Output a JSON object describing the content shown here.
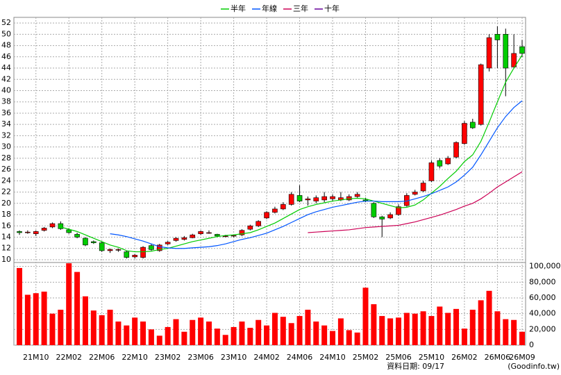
{
  "chart_data": {
    "type": "candlestick",
    "legend": [
      {
        "name": "半年",
        "color": "#00cc00"
      },
      {
        "name": "年線",
        "color": "#0055ff"
      },
      {
        "name": "三年",
        "color": "#cc0055"
      },
      {
        "name": "十年",
        "color": "#660099"
      }
    ],
    "categories": [
      null,
      null,
      "21M10",
      null,
      null,
      null,
      "22M02",
      null,
      null,
      null,
      "22M06",
      null,
      null,
      null,
      "22M10",
      null,
      null,
      null,
      "23M02",
      null,
      null,
      null,
      "23M06",
      null,
      null,
      null,
      "23M10",
      null,
      null,
      null,
      "24M02",
      null,
      null,
      null,
      "24M06",
      null,
      null,
      null,
      "24M10",
      null,
      null,
      null,
      "25M02",
      null,
      null,
      null,
      "25M06",
      null,
      null,
      null,
      "25M10",
      null,
      null,
      null,
      "26M02",
      null,
      null,
      null,
      "26M06",
      null,
      null,
      "26M09"
    ],
    "open": [
      15,
      14.9,
      14.6,
      15.2,
      15.8,
      16.4,
      15.3,
      14.5,
      13.8,
      13.2,
      13,
      11.6,
      11.8,
      11.4,
      10.5,
      10.4,
      12.5,
      11.6,
      12.8,
      13.4,
      13.6,
      13.9,
      14.6,
      14.8,
      14.5,
      14.2,
      14.2,
      14.4,
      15.4,
      16,
      17.4,
      18.4,
      19,
      19.8,
      21.4,
      20.6,
      20.4,
      20.6,
      20.8,
      20.6,
      20.6,
      21.2,
      20.6,
      20,
      17.6,
      17.4,
      18,
      19.6,
      21.6,
      22.2,
      24,
      27.6,
      27,
      28.2,
      30.6,
      34.4,
      34,
      44,
      50,
      50,
      44.2,
      47.8
    ],
    "high": [
      15.2,
      15.2,
      15.2,
      15.8,
      16.6,
      16.8,
      15.6,
      14.8,
      14,
      13.4,
      13.2,
      12,
      12,
      11.6,
      11,
      12.4,
      12.8,
      12.8,
      13.3,
      14,
      14.2,
      14.6,
      15.2,
      15.2,
      14.6,
      14.4,
      14.4,
      15.4,
      16.2,
      17,
      18.6,
      19.4,
      20.2,
      22,
      23.2,
      21.2,
      21.4,
      22,
      21.6,
      22,
      21.6,
      22,
      21,
      20.2,
      17.8,
      18.4,
      19.8,
      21.8,
      22.4,
      24,
      27.6,
      28,
      28.4,
      31,
      34.6,
      35,
      44.8,
      50,
      51.4,
      51,
      50,
      49
    ],
    "low": [
      14.4,
      14.6,
      14.2,
      15,
      15.6,
      15.3,
      14.6,
      13.8,
      12.4,
      12.8,
      11.4,
      11.2,
      11.4,
      10.2,
      10.2,
      10.2,
      11.6,
      11.4,
      12.6,
      13.2,
      13.4,
      13.8,
      14.4,
      14.6,
      14,
      14,
      14,
      14.2,
      15.2,
      15.8,
      17.2,
      18.2,
      18.8,
      19.6,
      20.2,
      19.6,
      20,
      20.2,
      20.4,
      20.4,
      20.4,
      21,
      20.2,
      17.4,
      14,
      17.2,
      17.8,
      19.4,
      21.4,
      22,
      23.8,
      26.2,
      26.8,
      28,
      30.4,
      33.2,
      33.8,
      43.4,
      44,
      39,
      44,
      46
    ],
    "close": [
      14.8,
      14.9,
      15,
      15.6,
      16.4,
      15.5,
      14.8,
      14,
      12.6,
      13,
      11.6,
      11.8,
      11.8,
      10.4,
      10.8,
      12.2,
      11.8,
      12.6,
      13.1,
      13.8,
      13.9,
      14.4,
      15,
      14.8,
      14.2,
      14.2,
      14.3,
      15.2,
      16,
      16.8,
      18.4,
      19,
      19.8,
      21.6,
      20.4,
      20.8,
      21,
      21.2,
      21.2,
      21,
      21.2,
      21.6,
      20.4,
      17.6,
      17.2,
      18,
      19.4,
      21.4,
      22,
      23.6,
      27.2,
      26.6,
      28,
      30.8,
      34.2,
      33.4,
      44.6,
      49.4,
      49,
      44,
      46.6,
      46.6
    ],
    "ylim": [
      9.5,
      53
    ],
    "yticks": [
      10,
      12,
      14,
      16,
      18,
      20,
      22,
      24,
      26,
      28,
      30,
      32,
      34,
      36,
      38,
      40,
      42,
      44,
      46,
      48,
      50,
      52
    ],
    "series": [
      {
        "name": "半年",
        "color": "#00cc00",
        "values": [
          null,
          null,
          null,
          null,
          null,
          15.8,
          15.4,
          15,
          14.4,
          13.8,
          13.2,
          12.6,
          12.2,
          11.6,
          11.4,
          11.4,
          11.5,
          11.8,
          12,
          12.4,
          12.8,
          13.2,
          13.5,
          13.8,
          14.1,
          14.3,
          14.4,
          14.6,
          14.8,
          15.3,
          15.9,
          16.5,
          17.3,
          18.1,
          18.9,
          19.4,
          19.8,
          20.1,
          20.4,
          20.6,
          20.8,
          20.9,
          20.8,
          20.4,
          20,
          19.6,
          19.2,
          19.3,
          19.7,
          20.6,
          21.8,
          23,
          24.4,
          25.7,
          27.4,
          28.6,
          31,
          34.4,
          38,
          41.5,
          44,
          46.3
        ]
      },
      {
        "name": "年線",
        "color": "#0055ff",
        "values": [
          null,
          null,
          null,
          null,
          null,
          null,
          null,
          null,
          null,
          null,
          null,
          14.6,
          14.4,
          14.1,
          13.7,
          13.3,
          12.8,
          12.3,
          12.1,
          12,
          12,
          12.1,
          12.2,
          12.3,
          12.5,
          12.8,
          13.2,
          13.6,
          13.9,
          14.3,
          14.7,
          15.3,
          15.9,
          16.6,
          17.3,
          18,
          18.5,
          18.9,
          19.3,
          19.6,
          19.9,
          20.2,
          20.4,
          20.4,
          20.3,
          20.3,
          20.3,
          20.4,
          20.8,
          21.2,
          21.7,
          22.3,
          22.9,
          23.8,
          25,
          26.4,
          28.6,
          31,
          33.4,
          35.4,
          37,
          38.2
        ]
      },
      {
        "name": "三年",
        "color": "#cc0055",
        "values": [
          null,
          null,
          null,
          null,
          null,
          null,
          null,
          null,
          null,
          null,
          null,
          null,
          null,
          null,
          null,
          null,
          null,
          null,
          null,
          null,
          null,
          null,
          null,
          null,
          null,
          null,
          null,
          null,
          null,
          null,
          null,
          null,
          null,
          null,
          null,
          14.8,
          14.9,
          15,
          15.1,
          15.2,
          15.3,
          15.5,
          15.7,
          15.8,
          15.9,
          16,
          16.1,
          16.4,
          16.7,
          17.1,
          17.5,
          17.9,
          18.4,
          18.9,
          19.5,
          20,
          20.8,
          21.8,
          22.9,
          23.8,
          24.7,
          25.6
        ]
      }
    ],
    "up_color": "#ff0000",
    "down_color": "#00cc00",
    "volume": {
      "color": "#ff0000",
      "values": [
        98000,
        64000,
        66000,
        68000,
        40000,
        45000,
        104000,
        93000,
        62000,
        44000,
        38000,
        45000,
        30000,
        25000,
        35000,
        30000,
        20000,
        12000,
        23000,
        33000,
        17000,
        32000,
        35000,
        30000,
        21000,
        13000,
        23000,
        30000,
        22000,
        32000,
        25000,
        41000,
        36000,
        28000,
        37000,
        45000,
        30000,
        25000,
        18000,
        34000,
        19000,
        16000,
        73000,
        52000,
        37000,
        34000,
        35000,
        41000,
        40000,
        43000,
        37000,
        49000,
        41000,
        46000,
        21000,
        45000,
        57000,
        69000,
        43000,
        33000,
        32000,
        17000
      ],
      "ylim": [
        0,
        105000
      ],
      "yticks": [
        0,
        {
          "value": 20000,
          "label": "20,000"
        },
        {
          "value": 40000,
          "label": "40,000"
        },
        {
          "value": 60000,
          "label": "60,000"
        },
        {
          "value": 80000,
          "label": "80,000"
        },
        {
          "value": 100000,
          "label": "100,000"
        }
      ]
    },
    "grid": true,
    "footer_date": "資料日期: 09/17",
    "footer_source": "(Goodinfo.tw)"
  }
}
